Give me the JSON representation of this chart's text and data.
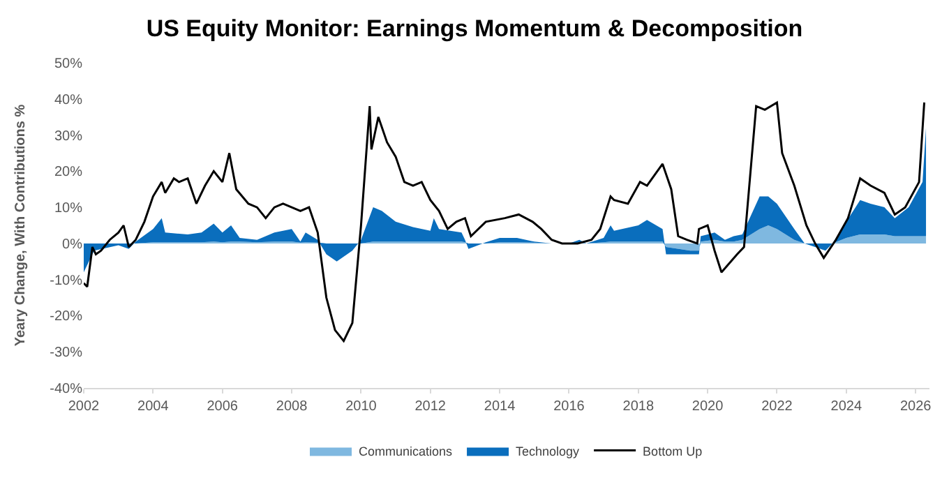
{
  "chart_data": {
    "type": "area",
    "title": "US Equity Monitor: Earnings Momentum & Decomposition",
    "ylabel": "Yeary Change, With Contributions %",
    "stacked": true,
    "legend": "bottom",
    "x": [
      2002.0,
      2002.3,
      2003.0,
      2003.3,
      2003.5,
      2004.0,
      2004.25,
      2004.35,
      2005.0,
      2005.4,
      2005.75,
      2006.0,
      2006.25,
      2006.5,
      2007.0,
      2007.5,
      2008.0,
      2008.25,
      2008.4,
      2008.75,
      2009.0,
      2009.3,
      2009.75,
      2010.0,
      2010.35,
      2010.6,
      2011.0,
      2011.5,
      2012.0,
      2012.1,
      2012.25,
      2012.9,
      2013.0,
      2013.1,
      2013.3,
      2013.6,
      2014.0,
      2014.5,
      2015.0,
      2015.5,
      2016.0,
      2016.3,
      2016.5,
      2017.0,
      2017.2,
      2017.3,
      2018.0,
      2018.25,
      2018.7,
      2018.8,
      2019.5,
      2019.75,
      2019.8,
      2020.2,
      2020.5,
      2020.75,
      2021.0,
      2021.5,
      2021.75,
      2022.0,
      2022.5,
      2022.8,
      2023.1,
      2023.4,
      2023.6,
      2024.0,
      2024.4,
      2024.7,
      2025.1,
      2025.4,
      2025.8,
      2026.2,
      2026.3
    ],
    "xlim": [
      2002,
      2026.4
    ],
    "xticks": [
      2002,
      2004,
      2006,
      2008,
      2010,
      2012,
      2014,
      2016,
      2018,
      2020,
      2022,
      2024,
      2026
    ],
    "ylim": [
      -40,
      50
    ],
    "yticks": [
      {
        "value": -40,
        "label": "-40%"
      },
      {
        "value": -30,
        "label": "-30%"
      },
      {
        "value": -20,
        "label": "-20%"
      },
      {
        "value": -10,
        "label": "-10%"
      },
      {
        "value": 0,
        "label": "0%"
      },
      {
        "value": 10,
        "label": "10%"
      },
      {
        "value": 20,
        "label": "20%"
      },
      {
        "value": 30,
        "label": "30%"
      },
      {
        "value": 40,
        "label": "40%"
      },
      {
        "value": 50,
        "label": "50%"
      }
    ],
    "series": [
      {
        "name": "Communications",
        "color": "#7fb8e0",
        "values": [
          0,
          0,
          0,
          0,
          0,
          0.3,
          0.3,
          0.3,
          0.3,
          0.3,
          0.5,
          0.3,
          0.5,
          0.5,
          0.3,
          0.5,
          0.5,
          0.2,
          0.3,
          0.2,
          0,
          0,
          0,
          0,
          0.5,
          0.5,
          0.5,
          0.5,
          0.5,
          0.5,
          0.5,
          0.5,
          0.3,
          0,
          0,
          0,
          0.3,
          0.3,
          0.2,
          0,
          0,
          0.2,
          0,
          0.3,
          0.5,
          0.5,
          0.5,
          0.5,
          0.5,
          -1,
          -2,
          -2,
          0.5,
          1,
          0.5,
          0.5,
          1,
          4,
          5,
          4,
          1,
          0,
          0,
          0,
          0,
          1.5,
          2.5,
          2.5,
          2.5,
          2,
          2,
          2,
          2
        ]
      },
      {
        "name": "Technology",
        "color": "#0a6ebd",
        "values": [
          -8,
          -2,
          -0.5,
          -1.5,
          0.5,
          3.7,
          6.7,
          2.7,
          2.2,
          2.7,
          5,
          2.7,
          4.5,
          1,
          0.7,
          2.5,
          3.5,
          0.3,
          2.7,
          0.8,
          -3,
          -5,
          -2,
          1,
          9.5,
          8.5,
          5.5,
          4,
          3,
          6.5,
          3.5,
          2.5,
          0.7,
          -1.5,
          -0.8,
          0.3,
          1.2,
          1.2,
          0.3,
          0,
          0,
          0.8,
          0,
          1.2,
          4.5,
          3,
          4.5,
          6,
          3.5,
          -2,
          -1,
          -1,
          1.5,
          2,
          0.5,
          1.5,
          1.5,
          9,
          8,
          7,
          3,
          0,
          -1,
          -2,
          0,
          4.5,
          9.5,
          8.5,
          7.5,
          5,
          8,
          15,
          30
        ]
      },
      {
        "name": "Bottom Up",
        "type": "line",
        "color": "#000000",
        "x": [
          2002.0,
          2002.1,
          2002.25,
          2002.35,
          2002.5,
          2002.75,
          2003.0,
          2003.15,
          2003.3,
          2003.5,
          2003.75,
          2004.0,
          2004.25,
          2004.35,
          2004.6,
          2004.75,
          2005.0,
          2005.25,
          2005.5,
          2005.75,
          2006.0,
          2006.2,
          2006.4,
          2006.75,
          2007.0,
          2007.25,
          2007.5,
          2007.75,
          2008.0,
          2008.25,
          2008.5,
          2008.75,
          2009.0,
          2009.25,
          2009.5,
          2009.75,
          2010.0,
          2010.25,
          2010.3,
          2010.5,
          2010.75,
          2011.0,
          2011.25,
          2011.5,
          2011.75,
          2012.0,
          2012.25,
          2012.5,
          2012.75,
          2013.0,
          2013.17,
          2013.6,
          2014.15,
          2014.55,
          2014.95,
          2015.2,
          2015.5,
          2015.8,
          2016.25,
          2016.65,
          2016.9,
          2017.2,
          2017.3,
          2017.7,
          2018.05,
          2018.25,
          2018.7,
          2018.95,
          2019.15,
          2019.4,
          2019.7,
          2019.75,
          2020.0,
          2020.2,
          2020.4,
          2020.85,
          2021.05,
          2021.4,
          2021.65,
          2022.0,
          2022.15,
          2022.5,
          2022.85,
          2023.1,
          2023.35,
          2023.7,
          2024.05,
          2024.4,
          2024.7,
          2025.1,
          2025.4,
          2025.7,
          2026.1,
          2026.25
        ],
        "values": [
          -11,
          -12,
          -1,
          -3,
          -2,
          1,
          3,
          5,
          -1,
          1,
          6,
          13,
          17,
          14,
          18,
          17,
          18,
          11,
          16,
          20,
          17,
          25,
          15,
          11,
          10,
          7,
          10,
          11,
          10,
          9,
          10,
          3,
          -15,
          -24,
          -27,
          -22,
          5,
          38,
          26,
          35,
          28,
          24,
          17,
          16,
          17,
          12,
          9,
          4,
          6,
          7,
          2,
          6,
          7,
          8,
          6,
          4,
          1,
          0,
          0,
          1,
          4,
          13,
          12,
          11,
          17,
          16,
          22,
          15,
          2,
          1,
          0,
          4,
          5,
          -2,
          -8,
          -3,
          -1,
          38,
          37,
          39,
          25,
          16,
          5,
          0,
          -4,
          1,
          7,
          18,
          16,
          14,
          8,
          10,
          17,
          39
        ]
      }
    ]
  }
}
